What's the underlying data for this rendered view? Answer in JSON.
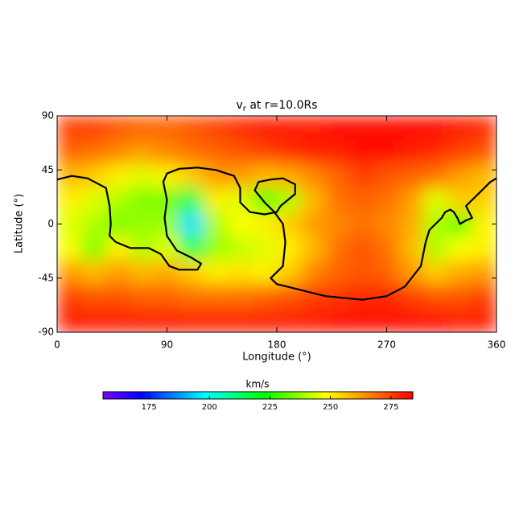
{
  "chart_data": {
    "type": "heatmap",
    "title": "v",
    "title_subscript": "r",
    "title_rest": " at r=10.0Rs",
    "xlabel": "Longitude (°)",
    "ylabel": "Latitude (°)",
    "xlim": [
      0,
      360
    ],
    "ylim": [
      -90,
      90
    ],
    "xticks": [
      0,
      90,
      180,
      270,
      360
    ],
    "yticks": [
      -90,
      -45,
      0,
      45,
      90
    ],
    "x": [
      10,
      30,
      50,
      70,
      90,
      110,
      130,
      150,
      170,
      190,
      210,
      230,
      250,
      270,
      290,
      310,
      330,
      350
    ],
    "y": [
      80,
      60,
      40,
      20,
      0,
      -20,
      -40,
      -60,
      -80
    ],
    "z": [
      [
        275,
        275,
        272,
        270,
        270,
        272,
        275,
        278,
        280,
        280,
        280,
        282,
        282,
        282,
        282,
        282,
        280,
        278
      ],
      [
        270,
        268,
        265,
        262,
        265,
        268,
        270,
        272,
        275,
        278,
        280,
        280,
        282,
        282,
        280,
        278,
        275,
        272
      ],
      [
        258,
        255,
        250,
        245,
        250,
        255,
        262,
        262,
        258,
        260,
        265,
        270,
        275,
        272,
        270,
        268,
        262,
        258
      ],
      [
        250,
        245,
        240,
        235,
        235,
        215,
        250,
        245,
        230,
        240,
        258,
        268,
        270,
        268,
        262,
        245,
        255,
        255
      ],
      [
        245,
        240,
        235,
        238,
        238,
        195,
        240,
        248,
        250,
        255,
        262,
        265,
        268,
        265,
        260,
        240,
        232,
        250
      ],
      [
        248,
        235,
        250,
        240,
        245,
        215,
        238,
        242,
        245,
        250,
        258,
        268,
        272,
        268,
        258,
        240,
        248,
        250
      ],
      [
        262,
        258,
        262,
        258,
        260,
        255,
        250,
        252,
        250,
        255,
        265,
        270,
        272,
        270,
        262,
        255,
        260,
        262
      ],
      [
        275,
        272,
        272,
        270,
        270,
        268,
        268,
        268,
        270,
        272,
        275,
        276,
        278,
        278,
        275,
        272,
        272,
        275
      ],
      [
        280,
        280,
        280,
        280,
        280,
        280,
        280,
        280,
        280,
        280,
        280,
        282,
        282,
        282,
        282,
        282,
        280,
        280
      ]
    ],
    "colormap": {
      "stops": [
        0,
        0.12,
        0.33,
        0.52,
        0.72,
        1
      ],
      "colors": [
        "#7f00ff",
        "#0000ff",
        "#00ffff",
        "#00ff00",
        "#ffff00",
        "#ff0000"
      ]
    },
    "colorbar": {
      "label": "km/s",
      "lim": [
        156,
        284
      ],
      "ticks": [
        175,
        200,
        225,
        250,
        275
      ]
    },
    "contour": {
      "color": "#000000",
      "x": [
        0,
        12,
        25,
        40,
        43,
        44,
        43,
        48,
        60,
        75,
        85,
        92,
        100,
        115,
        118,
        110,
        98,
        90,
        88,
        90,
        87,
        90,
        100,
        115,
        130,
        145,
        150,
        150,
        158,
        170,
        180,
        183,
        195,
        195,
        185,
        175,
        165,
        162,
        170,
        178,
        185,
        187,
        185,
        175,
        180,
        200,
        220,
        250,
        270,
        285,
        298,
        302,
        305,
        310,
        315,
        318,
        322,
        325,
        328,
        330,
        335,
        340,
        335,
        345,
        355,
        360
      ],
      "y": [
        37,
        40,
        38,
        30,
        15,
        0,
        -10,
        -15,
        -20,
        -20,
        -25,
        -35,
        -38,
        -38,
        -33,
        -28,
        -22,
        -10,
        5,
        20,
        35,
        42,
        46,
        47,
        45,
        40,
        30,
        18,
        10,
        8,
        10,
        15,
        25,
        33,
        38,
        37,
        35,
        28,
        18,
        10,
        0,
        -15,
        -35,
        -45,
        -50,
        -55,
        -60,
        -63,
        -60,
        -52,
        -35,
        -15,
        -5,
        0,
        5,
        10,
        12,
        10,
        5,
        0,
        3,
        5,
        15,
        25,
        35,
        38
      ]
    }
  }
}
